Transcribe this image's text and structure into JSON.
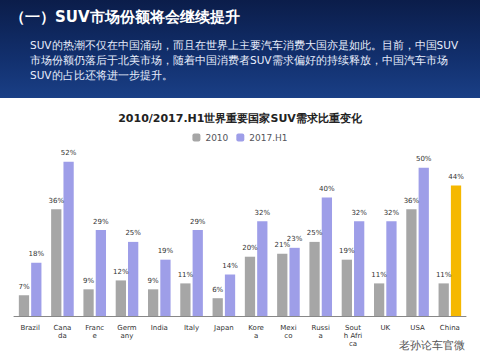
{
  "header": {
    "title": "（一）SUV市场份额将会继续提升",
    "text": "SUV的热潮不仅在中国涌动，而且在世界上主要汽车消费大国亦是如此。目前，中国SUV市场份额仍落后于北美市场，随着中国消费者SUV需求偏好的持续释放，中国汽车市场SUV的占比还将进一步提升。"
  },
  "chart_data": {
    "type": "bar",
    "title": "2010/2017.H1世界重要国家SUV需求比重变化",
    "categories": [
      "Brazil",
      "Canada",
      "France",
      "Germany",
      "India",
      "Italy",
      "Japan",
      "Korea",
      "Mexico",
      "Russia",
      "South Africa",
      "UK",
      "USA",
      "China"
    ],
    "series": [
      {
        "name": "2010",
        "color": "#a6a6a6",
        "values": [
          7,
          36,
          9,
          12,
          9,
          11,
          6,
          20,
          21,
          25,
          19,
          11,
          36,
          11
        ],
        "value_labels": [
          "7%",
          "36%",
          "9%",
          "12%",
          "9%",
          "11%",
          "6%",
          "20%",
          "21%",
          "25%",
          "19%",
          "11%",
          "36%",
          "11%"
        ]
      },
      {
        "name": "2017.H1",
        "color": "#9e9ee8",
        "colors": [
          "#9e9ee8",
          "#9e9ee8",
          "#9e9ee8",
          "#9e9ee8",
          "#9e9ee8",
          "#9e9ee8",
          "#9e9ee8",
          "#9e9ee8",
          "#9e9ee8",
          "#9e9ee8",
          "#9e9ee8",
          "#9e9ee8",
          "#9e9ee8",
          "#f5b800"
        ],
        "values": [
          18,
          52,
          29,
          25,
          19,
          29,
          14,
          32,
          23,
          40,
          32,
          32,
          50,
          44
        ],
        "value_labels": [
          "18%",
          "52%",
          "29%",
          "25%",
          "19%",
          "29%",
          "14%",
          "32%",
          "23%",
          "40%",
          "32%",
          "32%",
          "50%",
          "44%"
        ]
      }
    ],
    "ylim": [
      0,
      56
    ],
    "data_labels": true,
    "legend": "top",
    "grid": false,
    "tick_labels": "x"
  },
  "watermark": "老孙论车官微"
}
